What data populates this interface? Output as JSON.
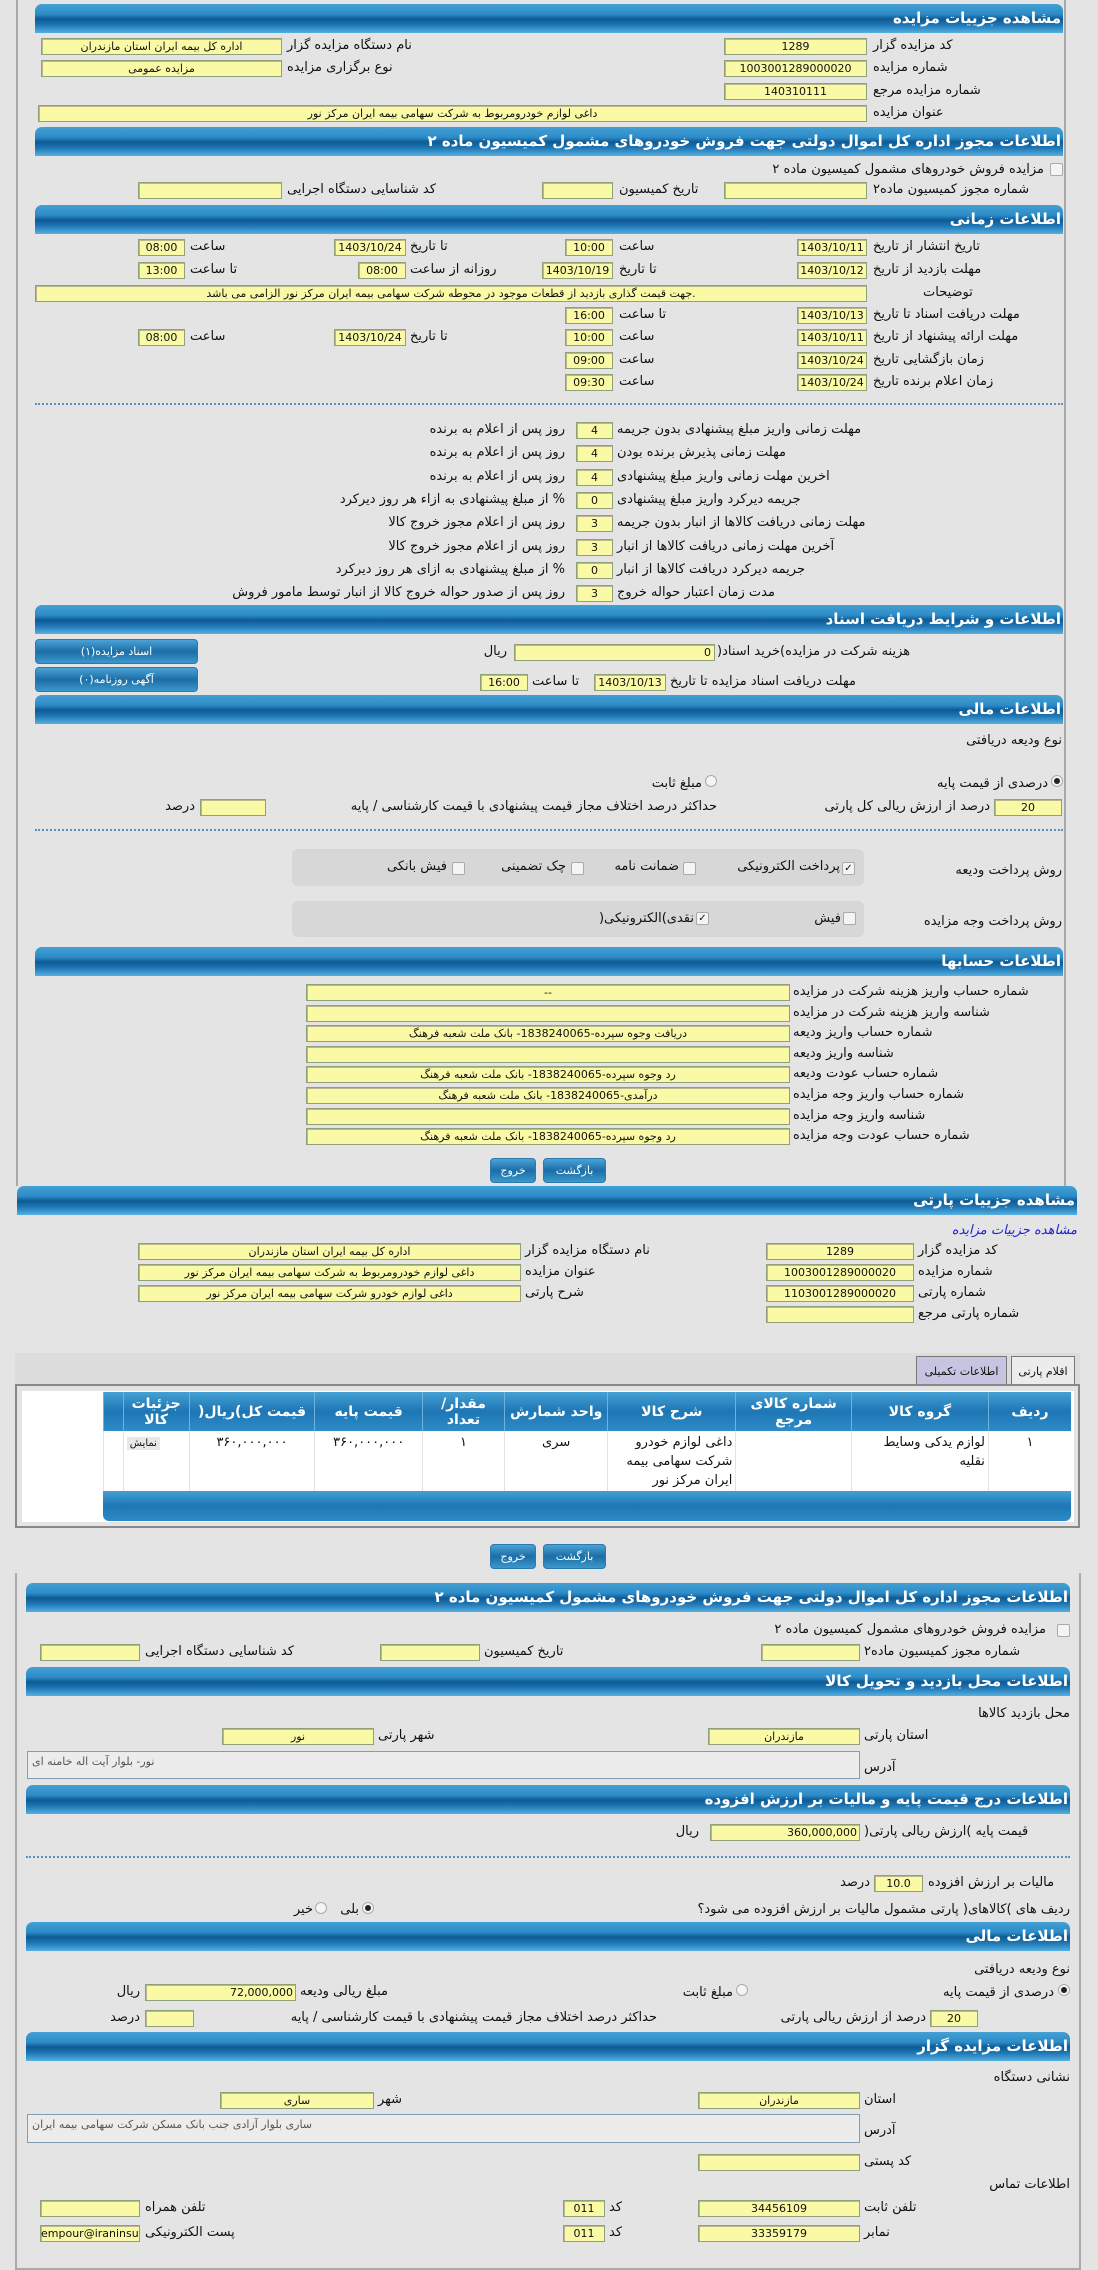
{
  "s1": {
    "title": "مشاهده جزییات مزایده",
    "code_lbl": "کد مزایده گزار",
    "code": "1289",
    "org_lbl": "نام دستگاه مزایده گزار",
    "org": "اداره کل بیمه ایران استان مازندران",
    "num_lbl": "شماره مزایده",
    "num": "1003001289000020",
    "type_lbl": "نوع برگزاری مزایده",
    "type": "مزایده عمومی",
    "ref_lbl": "شماره مزایده مرجع",
    "ref": "140310111",
    "title_lbl": "عنوان مزایده",
    "title_val": "داغی لوازم خودرومربوط به شرکت سهامی بیمه ایران مرکز نور"
  },
  "s2": {
    "title": "اطلاعات مجوز اداره کل اموال دولتی جهت فروش خودروهای مشمول کمیسیون ماده ۲",
    "cb_lbl": "مزایده فروش خودروهای مشمول کمیسیون ماده ۲",
    "cb_checked": false,
    "permit_lbl": "شماره مجوز کمیسیون ماده۲",
    "permit": "",
    "date_lbl": "تاریخ کمیسیون",
    "date": "",
    "exec_lbl": "کد شناسایی دستگاه اجرایی",
    "exec": ""
  },
  "s3": {
    "title": "اطلاعات زمانی",
    "pub_lbl": "تاریخ انتشار  از تاریخ",
    "pub_from": "1403/10/11",
    "pub_ftime_lbl": "ساعت",
    "pub_ftime": "10:00",
    "pub_to_lbl": "تا تاریخ",
    "pub_to": "1403/10/24",
    "pub_ttime_lbl": "ساعت",
    "pub_ttime": "08:00",
    "visit_lbl": "مهلت بازدید  از تاریخ",
    "visit_from": "1403/10/12",
    "visit_to_lbl": "تا تاریخ",
    "visit_to": "1403/10/19",
    "visit_daily_lbl": "روزانه از ساعت",
    "visit_daily": "08:00",
    "visit_ttime_lbl": "تا ساعت",
    "visit_ttime": "13:00",
    "desc_lbl": "توضیحات",
    "desc": ".جهت قیمت گذاری بازدید از قطعات موجود در محوطه شرکت سهامی بیمه ایران مرکز نور  الزامی می باشد",
    "doc_lbl": "مهلت دریافت اسناد  تا تاریخ",
    "doc_to": "1403/10/13",
    "doc_time_lbl": "تا ساعت",
    "doc_time": "16:00",
    "offer_lbl": "مهلت ارائه پیشنهاد  از تاریخ",
    "offer_from": "1403/10/11",
    "offer_ftime_lbl": "ساعت",
    "offer_ftime": "10:00",
    "offer_to_lbl": "تا تاریخ",
    "offer_to": "1403/10/24",
    "offer_ttime_lbl": "ساعت",
    "offer_ttime": "08:00",
    "open_lbl": "زمان بازگشایی    تاریخ",
    "open_date": "1403/10/24",
    "open_time_lbl": "ساعت",
    "open_time": "09:00",
    "win_lbl": "زمان اعلام برنده    تاریخ",
    "win_date": "1403/10/24",
    "win_time_lbl": "ساعت",
    "win_time": "09:30",
    "deadlines": [
      {
        "label": "مهلت زمانی واریز مبلغ پیشنهادی بدون جریمه",
        "value": "4",
        "suffix": "روز پس از اعلام به برنده"
      },
      {
        "label": "مهلت زمانی پذیرش برنده بودن",
        "value": "4",
        "suffix": "روز پس از اعلام به برنده"
      },
      {
        "label": "اخرین مهلت زمانی واریز مبلغ پیشنهادی",
        "value": "4",
        "suffix": "روز پس از اعلام به برنده"
      },
      {
        "label": "جریمه دیرکرد واریز مبلغ پیشنهادی",
        "value": "0",
        "suffix": "% از مبلغ پیشنهادی به ازاء هر روز دیرکرد"
      },
      {
        "label": "مهلت زمانی دریافت کالاها از انبار بدون جریمه",
        "value": "3",
        "suffix": "روز پس از اعلام مجوز خروج کالا"
      },
      {
        "label": "آخرین مهلت زمانی دریافت کالاها از انبار",
        "value": "3",
        "suffix": "روز پس از اعلام مجوز خروج کالا"
      },
      {
        "label": "جریمه دیرکرد دریافت کالاها از انبار",
        "value": "0",
        "suffix": "% از مبلغ پیشنهادی به ازای هر روز دیرکرد"
      },
      {
        "label": "مدت زمان اعتبار حواله خروج",
        "value": "3",
        "suffix": "روز پس از صدور حواله خروج کالا از انبار توسط مامور فروش"
      }
    ]
  },
  "s4": {
    "title": "اطلاعات و شرایط دریافت اسناد",
    "fee_lbl": "هزینه شرکت در مزایده)خرید اسناد(",
    "fee": "0",
    "fee_unit": "ریال",
    "deadline_lbl": "مهلت دریافت اسناد مزایده تا تاریخ",
    "deadline_date": "1403/10/13",
    "deadline_time_lbl": "تا ساعت",
    "deadline_time": "16:00",
    "docs_btn": "اسناد مزایده(۱)",
    "ad_btn": "آگهی روزنامه(۰)"
  },
  "s5": {
    "title": "اطلاعات مالی",
    "deposit_type_lbl": "نوع ودیعه دریافتی",
    "opt_percent": "درصدی از قیمت پایه",
    "opt_fixed": "مبلغ ثابت",
    "selected": "percent",
    "percent": "20",
    "percent_lbl": "درصد از ارزش ریالی کل پارتی",
    "maxdiff_lbl": "حداکثر درصد اختلاف مجاز قیمت پیشنهادی با قیمت کارشناسی / پایه",
    "maxdiff": "",
    "maxdiff_unit": "درصد",
    "pay_deposit_lbl": "روش پرداخت ودیعه",
    "pay_deposit": [
      {
        "label": "پرداخت الکترونیکی",
        "checked": true
      },
      {
        "label": "ضمانت نامه",
        "checked": false
      },
      {
        "label": "چک تضمینی",
        "checked": false
      },
      {
        "label": "فیش بانکی",
        "checked": false
      }
    ],
    "pay_amount_lbl": "روش پرداخت وجه مزایده",
    "pay_amount": [
      {
        "label": "فیش",
        "checked": false
      },
      {
        "label": "نقدی)الکترونیکی(",
        "checked": true
      }
    ]
  },
  "s6": {
    "title": "اطلاعات حسابها",
    "rows": [
      {
        "label": "شماره حساب واریز هزینه شرکت در مزایده",
        "value": "--"
      },
      {
        "label": "شناسه واریز هزینه شرکت در مزایده",
        "value": ""
      },
      {
        "label": "شماره حساب واریز ودیعه",
        "value": "دریافت وجوه سپرده-1838240065- بانک ملت شعبه فرهنگ"
      },
      {
        "label": "شناسه واریز ودیعه",
        "value": ""
      },
      {
        "label": "شماره حساب عودت ودیعه",
        "value": "رد وجوه سپرده-1838240065- بانک ملت شعبه فرهنگ"
      },
      {
        "label": "شماره حساب واریز وجه مزایده",
        "value": "درآمدی-1838240065- بانک ملت شعبه فرهنگ"
      },
      {
        "label": "شناسه واریز وجه مزایده",
        "value": ""
      },
      {
        "label": "شماره حساب عودت وجه مزایده",
        "value": "رد وجوه سپرده-1838240065- بانک ملت شعبه فرهنگ"
      }
    ]
  },
  "buttons": {
    "back": "بازگشت",
    "exit": "خروج"
  },
  "lot": {
    "title": "مشاهده جزییات پارتی",
    "link": "مشاهده جزییات مزایده",
    "code_lbl": "کد مزایده گزار",
    "code": "1289",
    "org_lbl": "نام دستگاه مزایده گزار",
    "org": "اداره کل بیمه ایران استان مازندران",
    "num_lbl": "شماره مزایده",
    "num": "1003001289000020",
    "title_lbl": "عنوان مزایده",
    "title_val": "داغی لوازم خودرومربوط به شرکت سهامی بیمه ایران مرکز نور",
    "lot_lbl": "شماره پارتی",
    "lot_num": "1103001289000020",
    "desc_lbl": "شرح پارتی",
    "desc": "داغی لوازم خودرو شرکت سهامی بیمه ایران مرکز نور",
    "ref_lbl": "شماره پارتی مرجع",
    "ref": "",
    "tabs": [
      {
        "label": "اقلام پارتی",
        "active": false
      },
      {
        "label": "اطلاعات تکمیلی",
        "active": true
      }
    ],
    "columns": [
      "ردیف",
      "گروه کالا",
      "شماره کالای مرجع",
      "شرح کالا",
      "واحد شمارش",
      "مقدار/ تعداد",
      "قیمت پایه",
      "قیمت کل)ریال(",
      "جزئیات کالا"
    ],
    "rows": [
      {
        "idx": "۱",
        "group": "لوازم یدکی وسایط نقلیه",
        "ref": "",
        "desc": "داغی لوازم خودرو شرکت سهامی بیمه ایران مرکز نور",
        "unit": "سری",
        "qty": "۱",
        "base": "۳۶۰,۰۰۰,۰۰۰",
        "total": "۳۶۰,۰۰۰,۰۰۰",
        "details": "نمایش"
      }
    ]
  },
  "p3": {
    "permit_title": "اطلاعات مجوز اداره کل اموال دولتی جهت فروش خودروهای مشمول کمیسیون ماده ۲",
    "cb_lbl": "مزایده فروش خودروهای مشمول کمیسیون ماده ۲",
    "permit_lbl": "شماره مجوز کمیسیون ماده۲",
    "date_lbl": "تاریخ کمیسیون",
    "exec_lbl": "کد شناسایی دستگاه اجرایی",
    "loc_title": "اطلاعات محل بازدید و تحویل کالا",
    "loc_sub": "محل بازدید کالاها",
    "prov_lbl": "استان پارتی",
    "prov": "مازندران",
    "city_lbl": "شهر پارتی",
    "city": "نور",
    "addr_lbl": "آدرس",
    "addr": "نور- بلوار آیت اله خامنه ای",
    "price_title": "اطلاعات درج قیمت پایه و مالیات بر ارزش افزوده",
    "base_lbl": "قیمت پایه )ارزش ریالی پارتی(",
    "base": "360,000,000",
    "base_unit": "ریال",
    "vat_lbl": "مالیات بر ارزش افزوده",
    "vat": "10.0",
    "vat_unit": "درصد",
    "vat_q": "ردیف های )کالاهای( پارتی مشمول مالیات بر ارزش افزوده می شود؟",
    "yes": "بلی",
    "no": "خیر",
    "vat_answer": "yes",
    "fin_title": "اطلاعات مالی",
    "deposit_type_lbl": "نوع ودیعه دریافتی",
    "opt_percent": "درصدی از قیمت پایه",
    "opt_fixed": "مبلغ ثابت",
    "dep_amount_lbl": "مبلغ ریالی ودیعه",
    "dep_amount": "72,000,000",
    "dep_unit": "ریال",
    "percent": "20",
    "percent_lbl": "درصد از ارزش ریالی پارتی",
    "maxdiff_lbl": "حداکثر درصد اختلاف مجاز قیمت پیشنهادی با قیمت کارشناسی / پایه",
    "maxdiff_unit": "درصد",
    "org_title": "اطلاعات مزایده گزار",
    "addr_sub": "نشانی دستگاه",
    "o_prov_lbl": "استان",
    "o_prov": "مازندران",
    "o_city_lbl": "شهر",
    "o_city": "ساری",
    "o_addr_lbl": "آدرس",
    "o_addr": "ساری بلوار آزادی جنب بانک مسکن شرکت سهامی بیمه ایران",
    "postal_lbl": "کد پستی",
    "postal": "",
    "contact_sub": "اطلاعات تماس",
    "phone_lbl": "تلفن ثابت",
    "phone": "34456109",
    "code_lbl": "کد",
    "phone_code": "011",
    "mobile_lbl": "تلفن همراه",
    "mobile": "",
    "fax_lbl": "نمابر",
    "fax": "33359179",
    "fax_code": "011",
    "email_lbl": "پست الکترونیکی",
    "email": "empour@iraninsur"
  }
}
